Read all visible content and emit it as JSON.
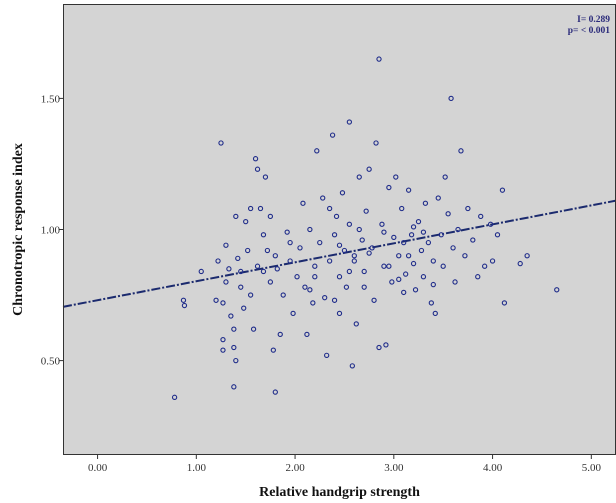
{
  "colors": {
    "panel": "#d4d4d4",
    "frame": "#333333",
    "marker": "#1f2c8a",
    "fit_line": "#1b2a6e"
  },
  "chart_data": {
    "type": "scatter",
    "xlabel": "Relative handgrip strength",
    "ylabel": "Chronotropic response index",
    "xlim": [
      -0.35,
      5.25
    ],
    "ylim": [
      0.14,
      1.86
    ],
    "x_ticks": [
      "0.00",
      "1.00",
      "2.00",
      "3.00",
      "4.00",
      "5.00"
    ],
    "x_tick_values": [
      0,
      1,
      2,
      3,
      4,
      5
    ],
    "y_ticks": [
      "0.50",
      "1.00",
      "1.50"
    ],
    "y_tick_values": [
      0.5,
      1.0,
      1.5
    ],
    "grid": false,
    "fit_line": {
      "style": "dash-dot",
      "x": [
        -0.35,
        5.25
      ],
      "y": [
        0.705,
        1.11
      ]
    },
    "annotation": {
      "r_text": "I= 0.289",
      "p_text": "p= < 0.001"
    },
    "points": [
      [
        0.78,
        0.36
      ],
      [
        0.87,
        0.73
      ],
      [
        0.88,
        0.71
      ],
      [
        1.05,
        0.84
      ],
      [
        1.2,
        0.73
      ],
      [
        1.25,
        1.33
      ],
      [
        1.27,
        0.72
      ],
      [
        1.27,
        0.58
      ],
      [
        1.27,
        0.54
      ],
      [
        1.22,
        0.88
      ],
      [
        1.3,
        0.94
      ],
      [
        1.3,
        0.8
      ],
      [
        1.33,
        0.85
      ],
      [
        1.35,
        0.67
      ],
      [
        1.38,
        0.62
      ],
      [
        1.38,
        0.55
      ],
      [
        1.4,
        0.5
      ],
      [
        1.38,
        0.4
      ],
      [
        1.4,
        1.05
      ],
      [
        1.42,
        0.89
      ],
      [
        1.45,
        0.84
      ],
      [
        1.45,
        0.78
      ],
      [
        1.48,
        0.7
      ],
      [
        1.5,
        1.03
      ],
      [
        1.52,
        0.92
      ],
      [
        1.55,
        1.08
      ],
      [
        1.55,
        0.75
      ],
      [
        1.58,
        0.62
      ],
      [
        1.6,
        1.27
      ],
      [
        1.62,
        1.23
      ],
      [
        1.62,
        0.86
      ],
      [
        1.65,
        1.08
      ],
      [
        1.68,
        0.98
      ],
      [
        1.68,
        0.84
      ],
      [
        1.7,
        1.2
      ],
      [
        1.72,
        0.92
      ],
      [
        1.75,
        1.05
      ],
      [
        1.75,
        0.8
      ],
      [
        1.78,
        0.54
      ],
      [
        1.8,
        0.38
      ],
      [
        1.8,
        0.9
      ],
      [
        1.82,
        0.85
      ],
      [
        1.85,
        0.6
      ],
      [
        1.88,
        0.75
      ],
      [
        1.92,
        0.99
      ],
      [
        1.95,
        0.88
      ],
      [
        1.98,
        0.68
      ],
      [
        2.02,
        0.82
      ],
      [
        2.05,
        0.93
      ],
      [
        2.08,
        1.1
      ],
      [
        2.1,
        0.78
      ],
      [
        2.12,
        0.6
      ],
      [
        2.15,
        1.0
      ],
      [
        2.18,
        0.72
      ],
      [
        2.2,
        0.86
      ],
      [
        2.22,
        1.3
      ],
      [
        2.25,
        0.95
      ],
      [
        2.28,
        1.12
      ],
      [
        2.3,
        0.74
      ],
      [
        2.32,
        0.52
      ],
      [
        2.35,
        0.88
      ],
      [
        2.38,
        1.36
      ],
      [
        2.4,
        0.98
      ],
      [
        2.42,
        1.05
      ],
      [
        2.45,
        0.82
      ],
      [
        2.45,
        0.68
      ],
      [
        2.48,
        1.14
      ],
      [
        2.5,
        0.92
      ],
      [
        2.52,
        0.78
      ],
      [
        2.55,
        1.41
      ],
      [
        2.55,
        1.02
      ],
      [
        2.58,
        0.48
      ],
      [
        2.6,
        0.88
      ],
      [
        2.62,
        0.64
      ],
      [
        2.65,
        1.2
      ],
      [
        2.68,
        0.96
      ],
      [
        2.7,
        0.84
      ],
      [
        2.72,
        1.07
      ],
      [
        2.75,
        1.23
      ],
      [
        2.78,
        0.93
      ],
      [
        2.8,
        0.73
      ],
      [
        2.82,
        1.33
      ],
      [
        2.85,
        1.65
      ],
      [
        2.85,
        0.55
      ],
      [
        2.88,
        1.02
      ],
      [
        2.9,
        0.86
      ],
      [
        2.92,
        0.56
      ],
      [
        2.95,
        1.16
      ],
      [
        2.98,
        0.8
      ],
      [
        3.0,
        0.97
      ],
      [
        3.02,
        1.2
      ],
      [
        3.05,
        0.9
      ],
      [
        3.08,
        1.08
      ],
      [
        3.1,
        0.76
      ],
      [
        3.12,
        0.83
      ],
      [
        3.15,
        1.15
      ],
      [
        3.18,
        0.98
      ],
      [
        3.2,
        0.87
      ],
      [
        3.22,
        0.77
      ],
      [
        3.25,
        1.03
      ],
      [
        3.28,
        0.92
      ],
      [
        3.3,
        0.82
      ],
      [
        3.32,
        1.1
      ],
      [
        3.35,
        0.95
      ],
      [
        3.38,
        0.72
      ],
      [
        3.4,
        0.88
      ],
      [
        3.42,
        0.68
      ],
      [
        3.45,
        1.12
      ],
      [
        3.48,
        0.98
      ],
      [
        3.5,
        0.86
      ],
      [
        3.52,
        1.2
      ],
      [
        3.55,
        1.06
      ],
      [
        3.58,
        1.5
      ],
      [
        3.6,
        0.93
      ],
      [
        3.62,
        0.8
      ],
      [
        3.65,
        1.0
      ],
      [
        3.68,
        1.3
      ],
      [
        3.72,
        0.9
      ],
      [
        3.75,
        1.08
      ],
      [
        3.8,
        0.96
      ],
      [
        3.85,
        0.82
      ],
      [
        3.88,
        1.05
      ],
      [
        3.92,
        0.86
      ],
      [
        3.98,
        1.02
      ],
      [
        4.0,
        0.88
      ],
      [
        4.05,
        0.98
      ],
      [
        4.1,
        1.15
      ],
      [
        4.12,
        0.72
      ],
      [
        4.28,
        0.87
      ],
      [
        4.35,
        0.9
      ],
      [
        4.65,
        0.77
      ],
      [
        2.35,
        1.08
      ],
      [
        2.6,
        0.9
      ],
      [
        2.9,
        0.99
      ],
      [
        3.1,
        0.95
      ],
      [
        2.2,
        0.82
      ],
      [
        2.7,
        0.78
      ],
      [
        3.3,
        0.99
      ],
      [
        2.45,
        0.94
      ],
      [
        2.95,
        0.86
      ],
      [
        3.2,
        1.01
      ],
      [
        1.95,
        0.95
      ],
      [
        2.15,
        0.77
      ],
      [
        3.4,
        0.79
      ],
      [
        2.55,
        0.84
      ],
      [
        2.75,
        0.91
      ],
      [
        3.05,
        0.81
      ],
      [
        2.4,
        0.73
      ],
      [
        3.15,
        0.9
      ],
      [
        2.65,
        1.0
      ]
    ]
  }
}
